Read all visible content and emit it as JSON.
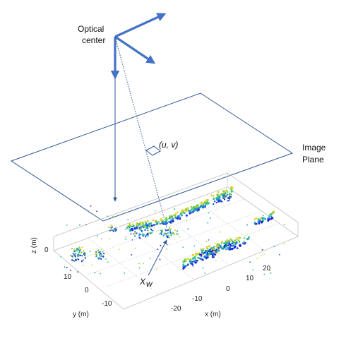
{
  "labels": {
    "optical_center_line1": "Optical",
    "optical_center_line2": "center",
    "pixel_coord": "(u, v)",
    "image_plane_line1": "Image",
    "image_plane_line2": "Plane",
    "world_point": "X",
    "world_point_sub": "w"
  },
  "axes": {
    "z_label": "z (m)",
    "y_label": "y (m)",
    "x_label": "x (m)",
    "z_ticks": [
      "0"
    ],
    "y_ticks": [
      "10",
      "0",
      "-10"
    ],
    "x_ticks": [
      "-20",
      "-10",
      "0",
      "10",
      "20"
    ]
  },
  "colors": {
    "frame_blue": "#4472c4",
    "ray_blue": "#2f5597",
    "box_gray": "#bfbfbf",
    "cloud": [
      "#1d2bd6",
      "#2a6ee0",
      "#1fa2c8",
      "#2ec28a",
      "#8cd13a",
      "#e3d12c"
    ]
  }
}
